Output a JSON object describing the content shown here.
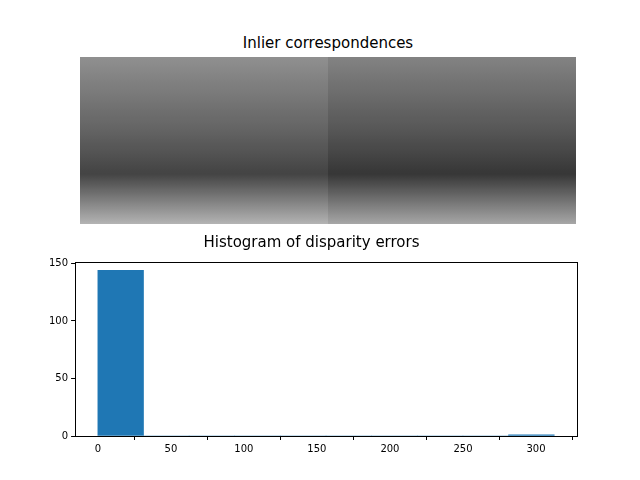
{
  "chart_data": [
    {
      "type": "image",
      "title": "Inlier correspondences"
    },
    {
      "type": "histogram",
      "title": "Histogram of disparity errors",
      "bins": [
        0,
        31.25,
        62.5,
        93.75,
        125,
        156.25,
        187.5,
        218.75,
        250,
        281.25,
        312.5
      ],
      "counts": [
        144,
        0,
        0,
        0,
        0,
        0,
        0,
        0,
        0,
        1
      ],
      "color": "#1f77b4",
      "xlim": [
        -15.6,
        328.1
      ],
      "xticks": [
        0,
        50,
        100,
        150,
        200,
        250,
        300
      ],
      "ylim": [
        0,
        151.2
      ],
      "yticks": [
        0,
        50,
        100,
        150
      ],
      "grid": false
    }
  ]
}
